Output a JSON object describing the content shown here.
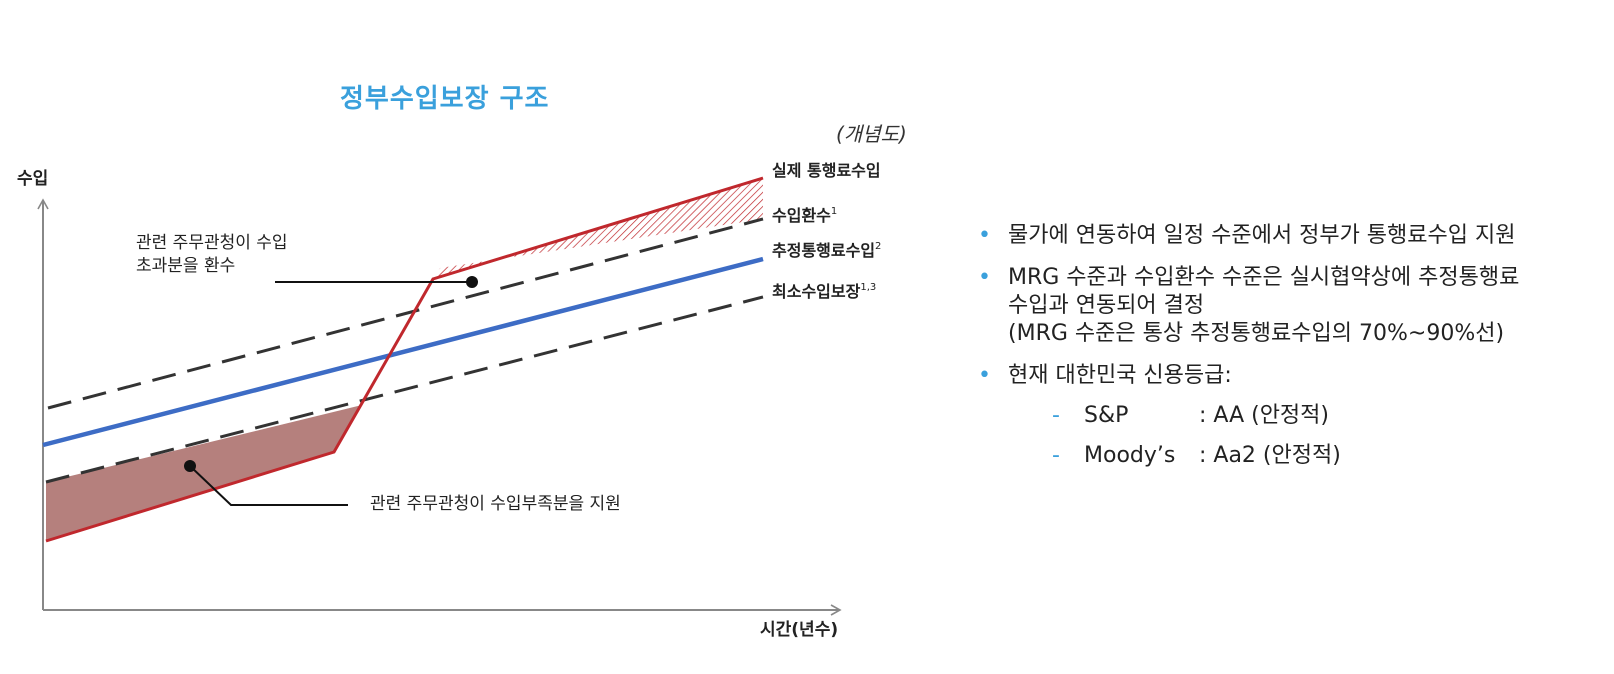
{
  "title": "정부수입보장 구조",
  "concept_note": "(개념도)",
  "diagram": {
    "y_axis_label": "수입",
    "x_axis_label": "시간(년수)",
    "line_labels": {
      "actual": "실제 통행료수입",
      "clawback": "수입환수",
      "clawback_sup": "1",
      "estimated": "추정통행료수입",
      "estimated_sup": "2",
      "minimum": "최소수입보장",
      "minimum_sup": "1,3"
    },
    "annotation_clawback_line1": "관련 주무관청이 수입",
    "annotation_clawback_line2": "초과분을 환수",
    "annotation_support": "관련 주무관청이 수입부족분을 지원",
    "colors": {
      "actual": "#c0282d",
      "estimated": "#3d6cc5",
      "bands": "#333333",
      "support_fill": "#b5807d",
      "axis": "#888888"
    }
  },
  "info": {
    "bullet1": "물가에 연동하여 일정 수준에서 정부가 통행료수입 지원",
    "bullet2_line1": "MRG 수준과 수입환수 수준은 실시협약상에 추정통행료",
    "bullet2_line2": "수입과 연동되어 결정",
    "bullet2_line3": "(MRG 수준은 통상 추정통행료수입의 70%~90%선)",
    "bullet3": "현재 대한민국 신용등급:",
    "ratings": [
      {
        "agency": "S&P",
        "rating": ": AA (안정적)"
      },
      {
        "agency": "Moody’s",
        "rating": ": Aa2 (안정적)"
      }
    ]
  }
}
